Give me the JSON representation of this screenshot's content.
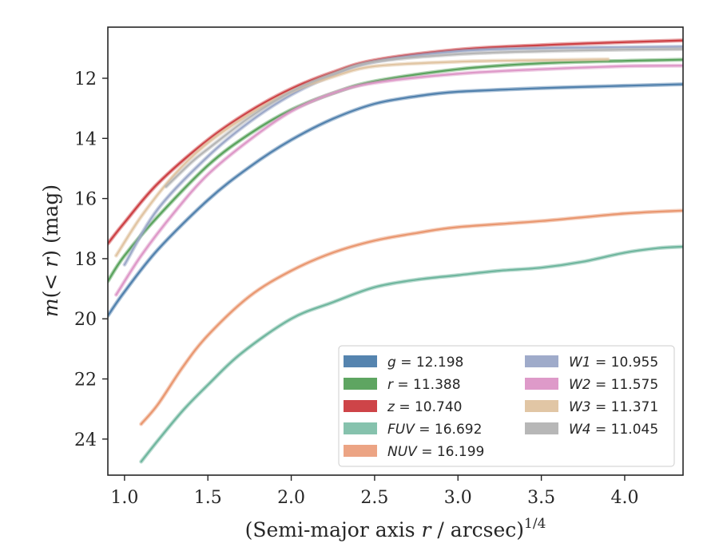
{
  "chart_data": {
    "type": "line",
    "title": "",
    "xlabel": "(Semi-major axis r / arcsec)",
    "xlabel_var": "r",
    "xlabel_pre": "(Semi-major axis ",
    "xlabel_post": " / arcsec)",
    "xlabel_sup": "1/4",
    "ylabel": "m(< r) (mag)",
    "ylabel_m": "m",
    "ylabel_mid": "(< ",
    "ylabel_r": "r",
    "ylabel_post": ") (mag)",
    "xlim": [
      0.9,
      4.35
    ],
    "ylim": [
      25.2,
      10.3
    ],
    "y_inverted": true,
    "grid": false,
    "legend_placement": "lower-right",
    "xticks": [
      "1.0",
      "1.5",
      "2.0",
      "2.5",
      "3.0",
      "3.5",
      "4.0"
    ],
    "yticks": [
      "12",
      "14",
      "16",
      "18",
      "20",
      "22",
      "24"
    ],
    "legend": [
      {
        "band": "g",
        "value": "12.198",
        "color": "#4c7dab"
      },
      {
        "band": "r",
        "value": "11.388",
        "color": "#55a058"
      },
      {
        "band": "z",
        "value": "10.740",
        "color": "#cb3a3e"
      },
      {
        "band": "FUV",
        "value": "16.692",
        "color": "#7fbfa9"
      },
      {
        "band": "NUV",
        "value": "16.199",
        "color": "#eb9f7d"
      },
      {
        "band": "W1",
        "value": "10.955",
        "color": "#9aa7c7"
      },
      {
        "band": "W2",
        "value": "11.575",
        "color": "#dc95c6"
      },
      {
        "band": "W3",
        "value": "11.371",
        "color": "#dfc3a0"
      },
      {
        "band": "W4",
        "value": "11.045",
        "color": "#b3b3b3"
      }
    ],
    "series": [
      {
        "name": "g",
        "color": "#4c7dab",
        "x": [
          0.9,
          1.0,
          1.2,
          1.5,
          1.75,
          2.0,
          2.25,
          2.5,
          2.75,
          3.0,
          3.5,
          4.0,
          4.35
        ],
        "y": [
          19.9,
          19.1,
          17.7,
          16.05,
          14.95,
          14.05,
          13.35,
          12.85,
          12.6,
          12.45,
          12.33,
          12.25,
          12.2
        ]
      },
      {
        "name": "r",
        "color": "#55a058",
        "x": [
          0.9,
          1.0,
          1.2,
          1.5,
          1.75,
          2.0,
          2.25,
          2.5,
          3.0,
          3.5,
          4.0,
          4.35
        ],
        "y": [
          18.75,
          17.9,
          16.6,
          14.9,
          13.85,
          13.05,
          12.5,
          12.1,
          11.7,
          11.5,
          11.42,
          11.38
        ]
      },
      {
        "name": "z",
        "color": "#cb3a3e",
        "x": [
          0.9,
          1.0,
          1.2,
          1.5,
          1.75,
          2.0,
          2.25,
          2.5,
          3.0,
          3.5,
          4.0,
          4.35
        ],
        "y": [
          17.5,
          16.8,
          15.5,
          14.05,
          13.1,
          12.35,
          11.8,
          11.4,
          11.05,
          10.9,
          10.8,
          10.74
        ]
      },
      {
        "name": "FUV",
        "color": "#6ab39b",
        "x": [
          1.1,
          1.2,
          1.35,
          1.5,
          1.7,
          2.0,
          2.25,
          2.5,
          2.75,
          3.0,
          3.25,
          3.5,
          3.75,
          4.0,
          4.2,
          4.35
        ],
        "y": [
          24.75,
          24.05,
          23.05,
          22.2,
          21.15,
          20.0,
          19.45,
          18.95,
          18.7,
          18.55,
          18.4,
          18.3,
          18.1,
          17.8,
          17.65,
          17.6
        ]
      },
      {
        "name": "NUV",
        "color": "#e8946c",
        "x": [
          1.1,
          1.2,
          1.35,
          1.5,
          1.75,
          2.0,
          2.25,
          2.5,
          2.75,
          3.0,
          3.5,
          4.0,
          4.35
        ],
        "y": [
          23.5,
          22.85,
          21.6,
          20.55,
          19.25,
          18.4,
          17.8,
          17.4,
          17.15,
          16.95,
          16.75,
          16.5,
          16.4
        ]
      },
      {
        "name": "W1",
        "color": "#9aa7c7",
        "x": [
          1.0,
          1.2,
          1.5,
          1.75,
          2.0,
          2.25,
          2.5,
          3.0,
          3.5,
          4.0,
          4.35
        ],
        "y": [
          18.2,
          16.35,
          14.6,
          13.45,
          12.55,
          11.9,
          11.45,
          11.1,
          11.0,
          10.97,
          10.95
        ]
      },
      {
        "name": "W2",
        "color": "#dc95c6",
        "x": [
          0.95,
          1.1,
          1.3,
          1.5,
          1.75,
          2.0,
          2.25,
          2.5,
          3.0,
          3.5,
          4.0,
          4.35
        ],
        "y": [
          19.2,
          17.9,
          16.45,
          15.2,
          14.05,
          13.1,
          12.5,
          12.15,
          11.85,
          11.7,
          11.6,
          11.58
        ]
      },
      {
        "name": "W3",
        "color": "#dfc3a0",
        "x": [
          0.95,
          1.1,
          1.3,
          1.5,
          1.75,
          2.0,
          2.25,
          2.5,
          3.0,
          3.5,
          3.9
        ],
        "y": [
          17.9,
          16.6,
          15.2,
          14.15,
          13.2,
          12.45,
          11.95,
          11.6,
          11.45,
          11.4,
          11.37
        ]
      },
      {
        "name": "W4",
        "color": "#b3b3b3",
        "x": [
          1.25,
          1.4,
          1.5,
          1.75,
          2.0,
          2.25,
          2.5,
          3.0,
          3.5,
          4.0,
          4.35
        ],
        "y": [
          15.6,
          14.8,
          14.35,
          13.3,
          12.45,
          11.85,
          11.45,
          11.2,
          11.1,
          11.05,
          11.03
        ]
      }
    ]
  }
}
